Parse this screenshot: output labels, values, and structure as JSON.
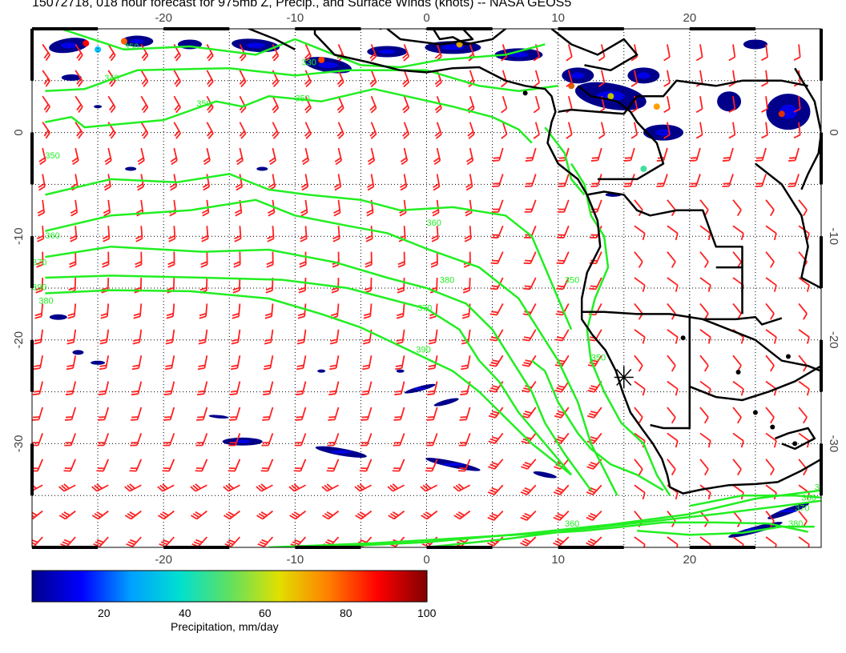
{
  "title": "15072718, 018 hour forecast for 975mb Z, Precip., and Surface Winds (knots) -- NASA GEOS5",
  "map": {
    "lon_range": [
      -30,
      30
    ],
    "lat_range": [
      -40,
      10
    ],
    "lon_ticks": [
      "-20",
      "-10",
      "0",
      "10",
      "20"
    ],
    "lat_ticks": [
      "0",
      "-10",
      "-20",
      "-30"
    ],
    "gridlines": "dotted",
    "wind_barb_color": "#ff2020",
    "contour_color": "#22ee22",
    "coastline_color": "#000000",
    "contour_labels": [
      "350",
      "340",
      "330",
      "350",
      "350",
      "350",
      "360",
      "360",
      "370",
      "380",
      "390",
      "370",
      "380",
      "390",
      "350",
      "350",
      "390",
      "380",
      "370",
      "360",
      "380"
    ],
    "marker": "station-cross"
  },
  "colorbar": {
    "caption": "Precipitation, mm/day",
    "ticks": [
      "20",
      "40",
      "60",
      "80",
      "100"
    ],
    "colors": [
      "#00008b",
      "#0000ff",
      "#00a0ff",
      "#00e0d0",
      "#60e060",
      "#e0e000",
      "#ff8000",
      "#ff0000",
      "#800000"
    ]
  }
}
